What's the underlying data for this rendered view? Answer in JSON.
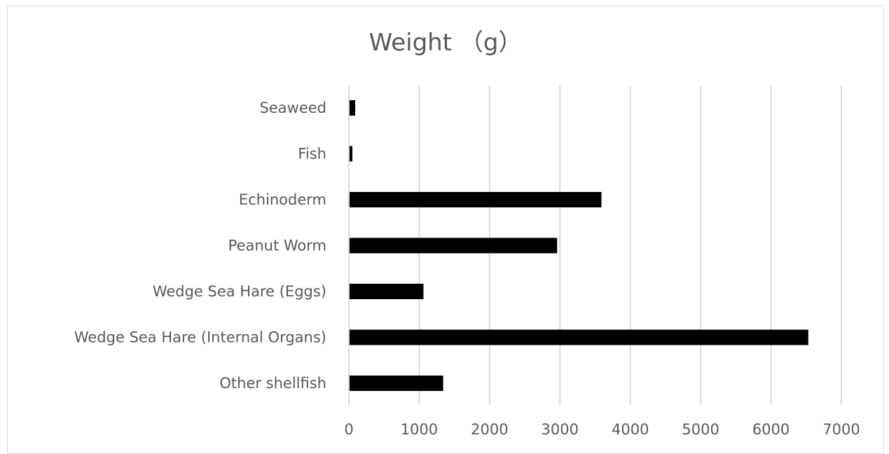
{
  "chart_data": {
    "type": "bar",
    "orientation": "horizontal",
    "title": "Weight （g）",
    "xlabel": "",
    "ylabel": "",
    "categories": [
      "Seaweed",
      "Fish",
      "Echinoderm",
      "Peanut Worm",
      "Wedge Sea Hare (Eggs)",
      "Wedge Sea Hare (Internal Organs)",
      "Other shellfish"
    ],
    "values": [
      80,
      40,
      3580,
      2950,
      1050,
      6520,
      1330
    ],
    "xlim": [
      0,
      7000
    ],
    "ticks": [
      "0",
      "1000",
      "2000",
      "3000",
      "4000",
      "5000",
      "6000",
      "7000"
    ],
    "tick_values": [
      0,
      1000,
      2000,
      3000,
      4000,
      5000,
      6000,
      7000
    ],
    "grid": "vertical",
    "legend": "none",
    "bar_color": "#000000",
    "grid_color": "#d9d9d9"
  }
}
